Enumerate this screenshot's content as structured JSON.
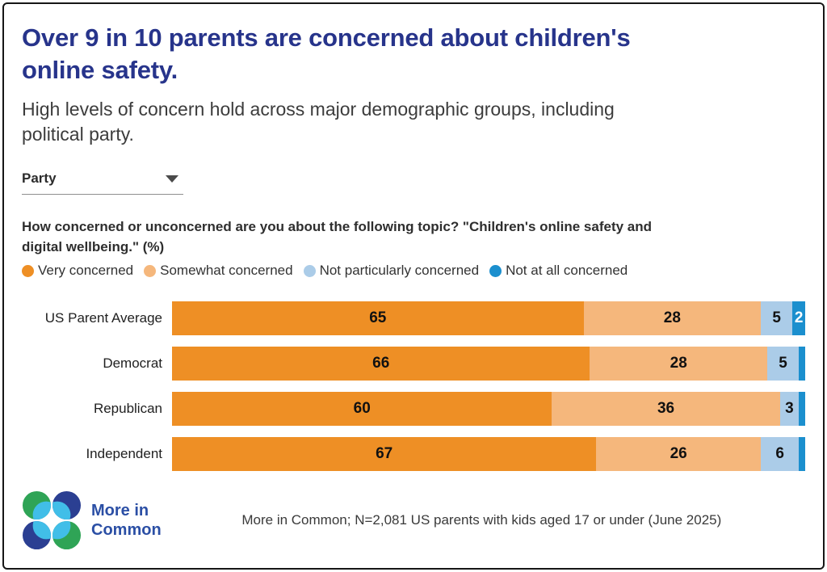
{
  "header": {
    "title_line1": "Over 9 in 10 parents are concerned about children's",
    "title_line2": "online safety.",
    "subtitle_line1": "High levels of concern hold across major demographic groups, including",
    "subtitle_line2": "political party."
  },
  "controls": {
    "dropdown": {
      "label": "Party"
    }
  },
  "question": {
    "line1": "How concerned or unconcerned are you about the following topic? \"Children's online safety and",
    "line2": "digital wellbeing.\" (%)"
  },
  "chart_data": {
    "type": "bar",
    "orientation": "horizontal",
    "stacked": true,
    "unit": "%",
    "xlim": [
      0,
      100
    ],
    "label_min_value": 2,
    "legend_position": "top",
    "categories": [
      "US Parent Average",
      "Democrat",
      "Republican",
      "Independent"
    ],
    "series": [
      {
        "name": "Very concerned",
        "color": "#EE8F25",
        "label_color": "#111111",
        "values": [
          65,
          66,
          60,
          67
        ]
      },
      {
        "name": "Somewhat concerned",
        "color": "#F5B77C",
        "label_color": "#111111",
        "values": [
          28,
          28,
          36,
          26
        ]
      },
      {
        "name": "Not particularly concerned",
        "color": "#ABCCE8",
        "label_color": "#111111",
        "values": [
          5,
          5,
          3,
          6
        ]
      },
      {
        "name": "Not at all concerned",
        "color": "#1B8FCE",
        "label_color": "#FFFFFF",
        "values": [
          2,
          1,
          1,
          1
        ]
      }
    ]
  },
  "footer": {
    "brand_line1": "More in",
    "brand_line2": "Common",
    "source": "More in Common; N=2,081 US parents with kids aged 17 or under (June 2025)",
    "logo_colors": {
      "green": "#2FA456",
      "navy": "#2B3F92",
      "cyan": "#41BEE8"
    }
  },
  "colors": {
    "title": "#27348B",
    "brand_text": "#2B4FA5"
  }
}
